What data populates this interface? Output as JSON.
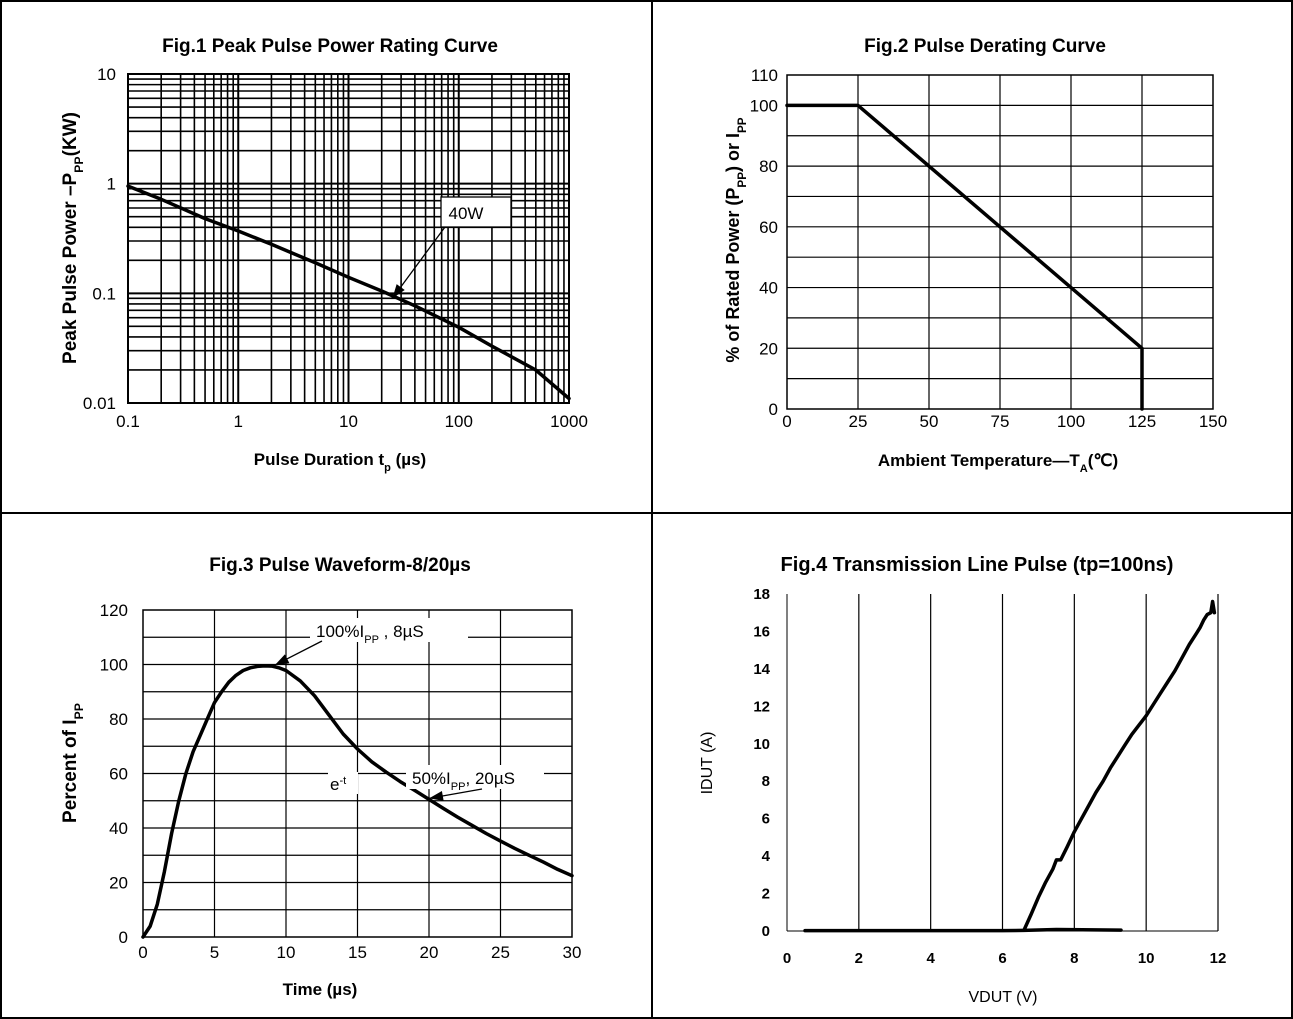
{
  "chart_data": [
    {
      "type": "line",
      "title": "Fig.1 Peak Pulse Power Rating Curve",
      "xlabel": "Pulse Duration t",
      "xlabel_sub": "p",
      "xlabel_suffix": " (µs)",
      "ylabel": "Peak Pulse Power –P",
      "ylabel_sub": "PP",
      "ylabel_suffix": "(KW)",
      "xscale": "log",
      "yscale": "log",
      "xlim": [
        0.1,
        1000
      ],
      "ylim": [
        0.01,
        10
      ],
      "xticks": [
        "0.1",
        "1",
        "10",
        "100",
        "1000"
      ],
      "yticks": [
        "0.01",
        "0.1",
        "1",
        "10"
      ],
      "grid": true,
      "series": [
        {
          "x": [
            0.1,
            0.2,
            0.5,
            1,
            2,
            5,
            10,
            20,
            40,
            100,
            200,
            500,
            1000
          ],
          "y": [
            0.95,
            0.72,
            0.48,
            0.37,
            0.28,
            0.19,
            0.14,
            0.105,
            0.077,
            0.049,
            0.033,
            0.02,
            0.011
          ]
        }
      ],
      "annotations": [
        {
          "text": "40W",
          "x": 25,
          "y": 0.09
        }
      ]
    },
    {
      "type": "line",
      "title": "Fig.2 Pulse Derating Curve",
      "xlabel": "Ambient Temperature—T",
      "xlabel_sub": "A",
      "xlabel_suffix": "(℃)",
      "ylabel": "% of Rated Power (P",
      "ylabel_sub": "PP",
      "ylabel_mid": ") or I",
      "ylabel_sub2": "PP",
      "xlim": [
        0,
        150
      ],
      "ylim": [
        0,
        110
      ],
      "xticks": [
        "0",
        "25",
        "50",
        "75",
        "100",
        "125",
        "150"
      ],
      "yticks": [
        "0",
        "20",
        "40",
        "60",
        "80",
        "100",
        "110"
      ],
      "grid": true,
      "series": [
        {
          "x": [
            0,
            25,
            125,
            125
          ],
          "y": [
            100,
            100,
            20,
            0
          ]
        }
      ]
    },
    {
      "type": "line",
      "title": "Fig.3 Pulse Waveform-8/20µs",
      "xlabel": "Time (µs)",
      "ylabel": "Percent of I",
      "ylabel_sub": "PP",
      "xlim": [
        0,
        30
      ],
      "ylim": [
        0,
        120
      ],
      "xticks": [
        "0",
        "5",
        "10",
        "15",
        "20",
        "25",
        "30"
      ],
      "yticks": [
        "0",
        "20",
        "40",
        "60",
        "80",
        "100",
        "120"
      ],
      "grid": true,
      "series": [
        {
          "x": [
            0,
            0.5,
            1,
            1.5,
            2,
            2.5,
            3,
            3.5,
            4,
            4.5,
            5,
            5.5,
            6,
            6.5,
            7,
            7.5,
            8,
            8.5,
            9,
            9.5,
            10,
            11,
            12,
            13,
            14,
            15,
            16,
            17,
            18,
            19,
            20,
            21,
            22,
            23,
            24,
            25,
            26,
            27,
            28,
            29,
            30
          ],
          "y": [
            0,
            4,
            12,
            24,
            38,
            50,
            60,
            68,
            74,
            80,
            86,
            90,
            93.5,
            96,
            97.8,
            98.8,
            99.3,
            99.5,
            99.4,
            98.8,
            97.8,
            94,
            88.5,
            81.5,
            74.5,
            69,
            64.3,
            60.5,
            57,
            53.8,
            50.5,
            47.2,
            44,
            41,
            38,
            35.2,
            32.5,
            30,
            27.5,
            24.8,
            22.5
          ]
        }
      ],
      "annotations": [
        {
          "text": "100%I",
          "sub": "PP",
          "suffix": " , 8µS",
          "x": 9,
          "y": 99
        },
        {
          "text": "50%I",
          "sub": "PP",
          "suffix": ", 20µS",
          "x": 20,
          "y": 50.5
        },
        {
          "text": "e",
          "sup": "-t",
          "x": 13.5,
          "y": 68
        }
      ]
    },
    {
      "type": "line",
      "title": "Fig.4 Transmission Line Pulse (tp=100ns)",
      "xlabel": "VDUT (V)",
      "ylabel": "IDUT (A)",
      "xlim": [
        0,
        12
      ],
      "ylim": [
        0,
        18
      ],
      "xticks": [
        "0",
        "2",
        "4",
        "6",
        "8",
        "10",
        "12"
      ],
      "yticks": [
        "0",
        "2",
        "4",
        "6",
        "8",
        "10",
        "12",
        "14",
        "16",
        "18"
      ],
      "grid": "vertical",
      "series": [
        {
          "x": [
            0.5,
            2,
            4,
            6,
            6.6,
            7.5,
            9.3
          ],
          "y": [
            0.02,
            0.02,
            0.02,
            0.02,
            0.03,
            0.08,
            0.05
          ]
        },
        {
          "x": [
            6.6,
            6.8,
            7.0,
            7.2,
            7.4,
            7.5,
            7.62,
            7.8,
            8.0,
            8.2,
            8.4,
            8.6,
            8.8,
            9.0,
            9.2,
            9.4,
            9.6,
            9.8,
            10.0,
            10.2,
            10.4,
            10.6,
            10.8,
            11.0,
            11.2,
            11.4,
            11.5,
            11.6,
            11.7,
            11.8,
            11.85,
            11.9
          ],
          "y": [
            0.05,
            0.9,
            1.8,
            2.6,
            3.3,
            3.8,
            3.8,
            4.5,
            5.3,
            6.0,
            6.7,
            7.4,
            8.0,
            8.7,
            9.3,
            9.9,
            10.5,
            11.0,
            11.5,
            12.1,
            12.7,
            13.3,
            13.9,
            14.6,
            15.3,
            15.9,
            16.2,
            16.6,
            16.9,
            17.0,
            17.6,
            17.0
          ]
        }
      ]
    }
  ]
}
